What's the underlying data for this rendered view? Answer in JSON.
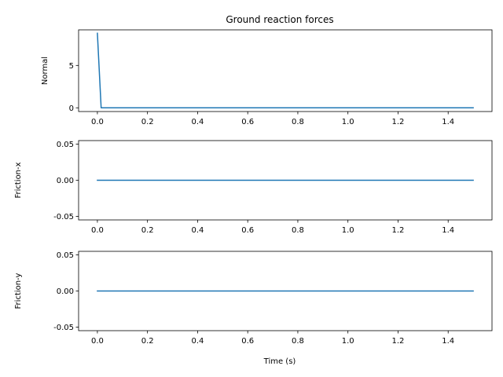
{
  "chart_data": {
    "type": "line",
    "title": "Ground reaction forces",
    "xlabel": "Time (s)",
    "series_color": "#1f77b4",
    "grid": false,
    "panels": [
      {
        "ylabel": "Normal",
        "xlim": [
          -0.075,
          1.575
        ],
        "ylim": [
          -0.44,
          9.2
        ],
        "yticks": [
          0,
          5
        ],
        "ytick_labels": [
          "0",
          "5"
        ],
        "xticks": [
          0.0,
          0.2,
          0.4,
          0.6,
          0.8,
          1.0,
          1.2,
          1.4
        ],
        "xtick_labels": [
          "0.0",
          "0.2",
          "0.4",
          "0.6",
          "0.8",
          "1.0",
          "1.2",
          "1.4"
        ],
        "series": [
          {
            "x": [
              0.0,
              0.015,
              1.5
            ],
            "y": [
              8.8,
              0.0,
              0.0
            ]
          }
        ]
      },
      {
        "ylabel": "Friction-x",
        "xlim": [
          -0.075,
          1.575
        ],
        "ylim": [
          -0.055,
          0.055
        ],
        "yticks": [
          -0.05,
          0.0,
          0.05
        ],
        "ytick_labels": [
          "-0.05",
          "0.00",
          "0.05"
        ],
        "xticks": [
          0.0,
          0.2,
          0.4,
          0.6,
          0.8,
          1.0,
          1.2,
          1.4
        ],
        "xtick_labels": [
          "0.0",
          "0.2",
          "0.4",
          "0.6",
          "0.8",
          "1.0",
          "1.2",
          "1.4"
        ],
        "series": [
          {
            "x": [
              0.0,
              1.5
            ],
            "y": [
              0.0,
              0.0
            ]
          }
        ]
      },
      {
        "ylabel": "Friction-y",
        "xlim": [
          -0.075,
          1.575
        ],
        "ylim": [
          -0.055,
          0.055
        ],
        "yticks": [
          -0.05,
          0.0,
          0.05
        ],
        "ytick_labels": [
          "-0.05",
          "0.00",
          "0.05"
        ],
        "xticks": [
          0.0,
          0.2,
          0.4,
          0.6,
          0.8,
          1.0,
          1.2,
          1.4
        ],
        "xtick_labels": [
          "0.0",
          "0.2",
          "0.4",
          "0.6",
          "0.8",
          "1.0",
          "1.2",
          "1.4"
        ],
        "series": [
          {
            "x": [
              0.0,
              1.5
            ],
            "y": [
              0.0,
              0.0
            ]
          }
        ]
      }
    ]
  }
}
